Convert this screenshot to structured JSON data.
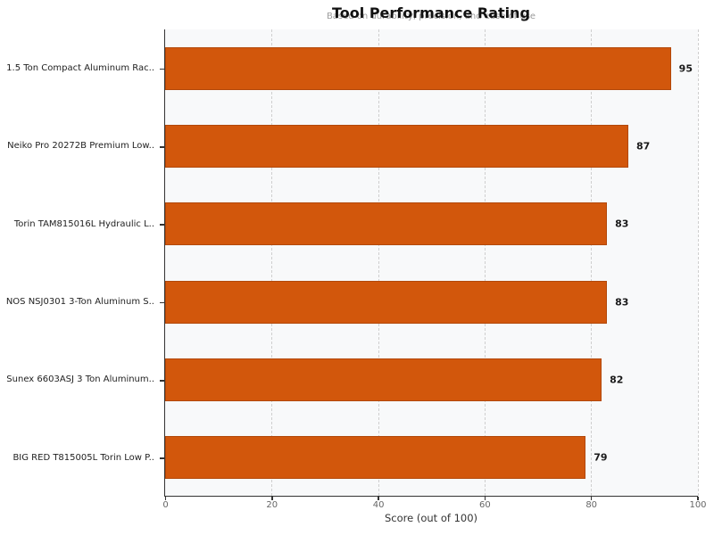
{
  "chart_data": {
    "type": "bar",
    "orientation": "horizontal",
    "title": "Tool Performance Rating",
    "subtitle": "Based on durability, precision, and ease of use",
    "categories": [
      "1.5 Ton Compact Aluminum Rac..",
      "Neiko Pro 20272B Premium Low..",
      "Torin TAM815016L Hydraulic L..",
      "NOS NSJ0301 3-Ton Aluminum S..",
      "Sunex 6603ASJ 3 Ton Aluminum..",
      "BIG RED T815005L Torin Low P.."
    ],
    "values": [
      95,
      87,
      83,
      83,
      82,
      79
    ],
    "xlabel": "Score (out of 100)",
    "xlim": [
      0,
      100
    ],
    "xticks": [
      0,
      20,
      40,
      60,
      80,
      100
    ],
    "grid": "vertical-dashed",
    "legend": "none",
    "bar_color": "#d2570c",
    "plot_background": "#f8f9fa",
    "gridline_color": "#cfcfcf",
    "value_labels_shown": true
  }
}
